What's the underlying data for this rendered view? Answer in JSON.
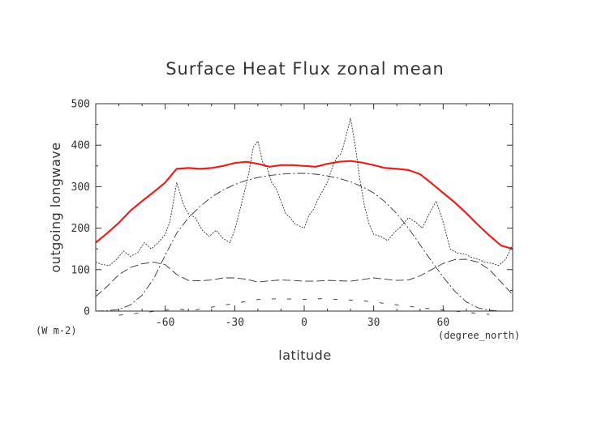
{
  "chart_data": {
    "type": "line",
    "title": "Surface Heat Flux zonal mean",
    "xlabel": "latitude",
    "ylabel": "outgoing longwave",
    "x_unit": "(degree_north)",
    "y_unit": "(W m-2)",
    "xlim": [
      -90,
      90
    ],
    "ylim": [
      0,
      500
    ],
    "xticks": [
      -60,
      -30,
      0,
      30,
      60
    ],
    "yticks": [
      0,
      100,
      200,
      300,
      400,
      500
    ],
    "grid": false,
    "series": [
      {
        "style": "solid",
        "color": "#e8211b",
        "x": [
          -90,
          -85,
          -80,
          -75,
          -70,
          -65,
          -60,
          -57,
          -55,
          -50,
          -45,
          -40,
          -35,
          -30,
          -25,
          -20,
          -15,
          -10,
          -5,
          0,
          5,
          10,
          15,
          20,
          25,
          30,
          35,
          40,
          45,
          50,
          55,
          60,
          65,
          70,
          75,
          80,
          85,
          90
        ],
        "values": [
          165,
          188,
          213,
          242,
          265,
          287,
          310,
          330,
          343,
          345,
          343,
          345,
          350,
          357,
          360,
          355,
          348,
          352,
          352,
          350,
          348,
          355,
          360,
          362,
          358,
          352,
          345,
          343,
          340,
          330,
          308,
          285,
          262,
          236,
          208,
          182,
          158,
          150
        ]
      },
      {
        "style": "dotted",
        "color": "#333333",
        "x": [
          -90,
          -87,
          -84,
          -81,
          -78,
          -75,
          -72,
          -69,
          -66,
          -63,
          -60,
          -58,
          -55,
          -52,
          -50,
          -47,
          -44,
          -41,
          -38,
          -35,
          -32,
          -30,
          -27,
          -24,
          -22,
          -20,
          -18,
          -16,
          -14,
          -12,
          -10,
          -8,
          -6,
          -4,
          -2,
          0,
          2,
          4,
          6,
          8,
          10,
          12,
          14,
          16,
          18,
          20,
          22,
          24,
          26,
          28,
          30,
          33,
          36,
          39,
          42,
          45,
          48,
          51,
          54,
          57,
          60,
          63,
          66,
          69,
          72,
          75,
          78,
          81,
          84,
          87,
          90
        ],
        "values": [
          118,
          112,
          110,
          125,
          145,
          132,
          140,
          165,
          150,
          165,
          185,
          215,
          310,
          255,
          235,
          225,
          195,
          180,
          195,
          175,
          165,
          195,
          260,
          330,
          395,
          410,
          360,
          345,
          310,
          295,
          265,
          235,
          225,
          210,
          205,
          200,
          230,
          245,
          270,
          290,
          310,
          345,
          370,
          380,
          420,
          465,
          400,
          320,
          255,
          210,
          185,
          180,
          170,
          190,
          205,
          225,
          215,
          200,
          235,
          265,
          215,
          150,
          140,
          138,
          130,
          125,
          118,
          115,
          110,
          125,
          160
        ]
      },
      {
        "style": "dashed",
        "color": "#333333",
        "x": [
          -90,
          -85,
          -80,
          -75,
          -70,
          -65,
          -60,
          -55,
          -50,
          -45,
          -40,
          -35,
          -30,
          -25,
          -20,
          -15,
          -10,
          -5,
          0,
          5,
          10,
          15,
          20,
          25,
          30,
          35,
          40,
          45,
          50,
          55,
          60,
          65,
          70,
          75,
          80,
          85,
          90
        ],
        "values": [
          35,
          60,
          88,
          105,
          114,
          118,
          112,
          88,
          74,
          73,
          75,
          80,
          80,
          77,
          70,
          73,
          75,
          74,
          72,
          72,
          74,
          73,
          72,
          76,
          80,
          77,
          74,
          75,
          85,
          100,
          115,
          124,
          125,
          118,
          100,
          70,
          40
        ]
      },
      {
        "style": "dash-dot",
        "color": "#333333",
        "x": [
          -90,
          -85,
          -80,
          -75,
          -70,
          -65,
          -60,
          -55,
          -50,
          -45,
          -40,
          -35,
          -30,
          -25,
          -20,
          -15,
          -10,
          -5,
          0,
          5,
          10,
          15,
          20,
          25,
          30,
          35,
          40,
          45,
          50,
          55,
          60,
          65,
          70,
          75,
          80,
          85,
          90
        ],
        "values": [
          0,
          1,
          4,
          15,
          38,
          78,
          135,
          188,
          225,
          252,
          275,
          292,
          305,
          315,
          322,
          327,
          330,
          332,
          332,
          330,
          326,
          320,
          312,
          300,
          285,
          263,
          235,
          200,
          160,
          120,
          82,
          48,
          22,
          8,
          2,
          0,
          0
        ]
      },
      {
        "style": "sparse-dashes",
        "color": "#333333",
        "x": [
          -80,
          -55,
          -48,
          -20,
          -10,
          0,
          8,
          25,
          55,
          80
        ],
        "values": [
          -10,
          5,
          2,
          28,
          30,
          28,
          30,
          25,
          5,
          -8
        ]
      }
    ]
  }
}
